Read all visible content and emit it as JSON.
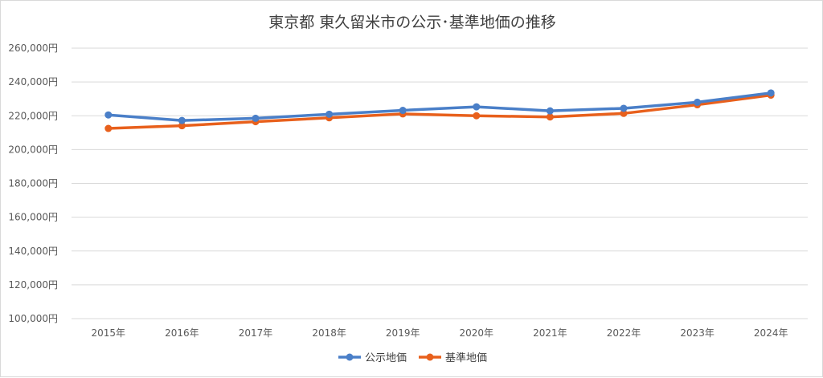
{
  "chart_data": {
    "type": "line",
    "title": "東京都 東久留米市の公示･基準地価の推移",
    "categories": [
      "2015年",
      "2016年",
      "2017年",
      "2018年",
      "2019年",
      "2020年",
      "2021年",
      "2022年",
      "2023年",
      "2024年"
    ],
    "ylim": [
      100000,
      260000
    ],
    "yticks": [
      "100,000円",
      "120,000円",
      "140,000円",
      "160,000円",
      "180,000円",
      "200,000円",
      "220,000円",
      "240,000円",
      "260,000円"
    ],
    "ytick_values": [
      100000,
      120000,
      140000,
      160000,
      180000,
      200000,
      220000,
      240000,
      260000
    ],
    "grid": true,
    "legend_position": "bottom",
    "series": [
      {
        "name": "公示地価",
        "color": "#4a7fc8",
        "values": [
          220500,
          217200,
          218500,
          220900,
          223200,
          225300,
          222900,
          224400,
          228000,
          233500
        ]
      },
      {
        "name": "基準地価",
        "color": "#e8601c",
        "values": [
          212500,
          214100,
          216500,
          218800,
          221100,
          220000,
          219300,
          221400,
          226500,
          232200
        ]
      }
    ]
  }
}
